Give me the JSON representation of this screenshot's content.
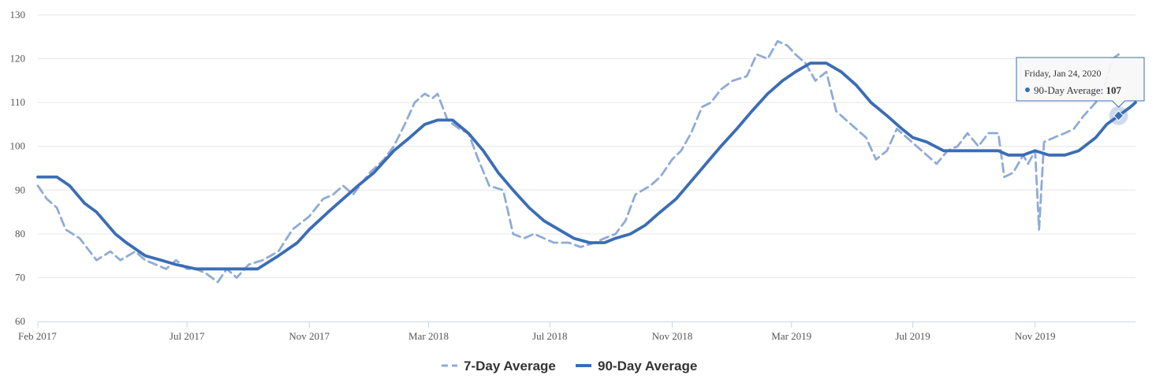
{
  "chart_data": {
    "type": "line",
    "ylim": [
      60,
      130
    ],
    "yticks": [
      60,
      70,
      80,
      90,
      100,
      110,
      120,
      130
    ],
    "xlim": [
      "2017-02-01",
      "2020-02-10"
    ],
    "xticks": [
      {
        "date": "2017-02-01",
        "label": "Feb 2017"
      },
      {
        "date": "2017-07-01",
        "label": "Jul 2017"
      },
      {
        "date": "2017-11-01",
        "label": "Nov 2017"
      },
      {
        "date": "2018-03-01",
        "label": "Mar 2018"
      },
      {
        "date": "2018-07-01",
        "label": "Jul 2018"
      },
      {
        "date": "2018-11-01",
        "label": "Nov 2018"
      },
      {
        "date": "2019-03-01",
        "label": "Mar 2019"
      },
      {
        "date": "2019-07-01",
        "label": "Jul 2019"
      },
      {
        "date": "2019-11-01",
        "label": "Nov 2019"
      }
    ],
    "grid": true,
    "legend_position": "bottom-center",
    "series": [
      {
        "name": "7-Day Average",
        "style": "dashed",
        "color": "#8fabd6",
        "points": [
          [
            "2017-02-01",
            91
          ],
          [
            "2017-02-10",
            88
          ],
          [
            "2017-02-20",
            86
          ],
          [
            "2017-03-01",
            81
          ],
          [
            "2017-03-15",
            79
          ],
          [
            "2017-04-01",
            74
          ],
          [
            "2017-04-15",
            76
          ],
          [
            "2017-04-25",
            74
          ],
          [
            "2017-05-10",
            76
          ],
          [
            "2017-05-20",
            74
          ],
          [
            "2017-06-10",
            72
          ],
          [
            "2017-06-20",
            74
          ],
          [
            "2017-07-01",
            72
          ],
          [
            "2017-07-10",
            72
          ],
          [
            "2017-07-20",
            71
          ],
          [
            "2017-08-01",
            69
          ],
          [
            "2017-08-10",
            72
          ],
          [
            "2017-08-20",
            70
          ],
          [
            "2017-09-01",
            73
          ],
          [
            "2017-09-15",
            74
          ],
          [
            "2017-10-01",
            76
          ],
          [
            "2017-10-15",
            81
          ],
          [
            "2017-11-01",
            84
          ],
          [
            "2017-11-15",
            88
          ],
          [
            "2017-11-25",
            89
          ],
          [
            "2017-12-05",
            91
          ],
          [
            "2017-12-15",
            89
          ],
          [
            "2018-01-01",
            94
          ],
          [
            "2018-01-15",
            97
          ],
          [
            "2018-01-25",
            100
          ],
          [
            "2018-02-05",
            105
          ],
          [
            "2018-02-15",
            110
          ],
          [
            "2018-02-25",
            112
          ],
          [
            "2018-03-05",
            111
          ],
          [
            "2018-03-10",
            112
          ],
          [
            "2018-03-20",
            106
          ],
          [
            "2018-04-01",
            104
          ],
          [
            "2018-04-10",
            103
          ],
          [
            "2018-04-20",
            97
          ],
          [
            "2018-05-01",
            91
          ],
          [
            "2018-05-15",
            90
          ],
          [
            "2018-05-25",
            80
          ],
          [
            "2018-06-05",
            79
          ],
          [
            "2018-06-15",
            80
          ],
          [
            "2018-06-25",
            79
          ],
          [
            "2018-07-05",
            78
          ],
          [
            "2018-07-20",
            78
          ],
          [
            "2018-08-01",
            77
          ],
          [
            "2018-08-15",
            78
          ],
          [
            "2018-08-25",
            79
          ],
          [
            "2018-09-05",
            80
          ],
          [
            "2018-09-15",
            83
          ],
          [
            "2018-09-25",
            89
          ],
          [
            "2018-10-10",
            91
          ],
          [
            "2018-10-20",
            93
          ],
          [
            "2018-11-01",
            97
          ],
          [
            "2018-11-10",
            99
          ],
          [
            "2018-11-20",
            103
          ],
          [
            "2018-12-01",
            109
          ],
          [
            "2018-12-10",
            110
          ],
          [
            "2018-12-20",
            113
          ],
          [
            "2019-01-01",
            115
          ],
          [
            "2019-01-15",
            116
          ],
          [
            "2019-01-25",
            121
          ],
          [
            "2019-02-05",
            120
          ],
          [
            "2019-02-15",
            124
          ],
          [
            "2019-02-25",
            123
          ],
          [
            "2019-03-05",
            121
          ],
          [
            "2019-03-15",
            119
          ],
          [
            "2019-03-25",
            115
          ],
          [
            "2019-04-05",
            117
          ],
          [
            "2019-04-15",
            108
          ],
          [
            "2019-04-25",
            106
          ],
          [
            "2019-05-05",
            104
          ],
          [
            "2019-05-15",
            102
          ],
          [
            "2019-05-25",
            97
          ],
          [
            "2019-06-05",
            99
          ],
          [
            "2019-06-15",
            104
          ],
          [
            "2019-06-25",
            102
          ],
          [
            "2019-07-05",
            100
          ],
          [
            "2019-07-15",
            98
          ],
          [
            "2019-07-25",
            96
          ],
          [
            "2019-08-05",
            99
          ],
          [
            "2019-08-15",
            100
          ],
          [
            "2019-08-25",
            103
          ],
          [
            "2019-09-05",
            100
          ],
          [
            "2019-09-15",
            103
          ],
          [
            "2019-09-25",
            103
          ],
          [
            "2019-10-01",
            93
          ],
          [
            "2019-10-10",
            94
          ],
          [
            "2019-10-20",
            98
          ],
          [
            "2019-10-25",
            96
          ],
          [
            "2019-11-01",
            99
          ],
          [
            "2019-11-05",
            81
          ],
          [
            "2019-11-10",
            101
          ],
          [
            "2019-11-20",
            102
          ],
          [
            "2019-12-01",
            103
          ],
          [
            "2019-12-10",
            104
          ],
          [
            "2019-12-20",
            107
          ],
          [
            "2020-01-01",
            110
          ],
          [
            "2020-01-10",
            114
          ],
          [
            "2020-01-18",
            120
          ],
          [
            "2020-01-24",
            121
          ]
        ]
      },
      {
        "name": "90-Day Average",
        "style": "solid",
        "color": "#3b6db5",
        "points": [
          [
            "2017-02-01",
            93
          ],
          [
            "2017-02-20",
            93
          ],
          [
            "2017-03-05",
            91
          ],
          [
            "2017-03-20",
            87
          ],
          [
            "2017-04-01",
            85
          ],
          [
            "2017-04-20",
            80
          ],
          [
            "2017-05-01",
            78
          ],
          [
            "2017-05-20",
            75
          ],
          [
            "2017-06-05",
            74
          ],
          [
            "2017-06-20",
            73
          ],
          [
            "2017-07-10",
            72
          ],
          [
            "2017-08-01",
            72
          ],
          [
            "2017-08-20",
            72
          ],
          [
            "2017-09-10",
            72
          ],
          [
            "2017-10-01",
            75
          ],
          [
            "2017-10-20",
            78
          ],
          [
            "2017-11-01",
            81
          ],
          [
            "2017-11-20",
            85
          ],
          [
            "2017-12-05",
            88
          ],
          [
            "2017-12-20",
            91
          ],
          [
            "2018-01-05",
            94
          ],
          [
            "2018-01-25",
            99
          ],
          [
            "2018-02-10",
            102
          ],
          [
            "2018-02-25",
            105
          ],
          [
            "2018-03-10",
            106
          ],
          [
            "2018-03-25",
            106
          ],
          [
            "2018-04-10",
            103
          ],
          [
            "2018-04-25",
            99
          ],
          [
            "2018-05-10",
            94
          ],
          [
            "2018-05-25",
            90
          ],
          [
            "2018-06-10",
            86
          ],
          [
            "2018-06-25",
            83
          ],
          [
            "2018-07-10",
            81
          ],
          [
            "2018-07-25",
            79
          ],
          [
            "2018-08-10",
            78
          ],
          [
            "2018-08-25",
            78
          ],
          [
            "2018-09-05",
            79
          ],
          [
            "2018-09-20",
            80
          ],
          [
            "2018-10-05",
            82
          ],
          [
            "2018-10-20",
            85
          ],
          [
            "2018-11-05",
            88
          ],
          [
            "2018-11-20",
            92
          ],
          [
            "2018-12-05",
            96
          ],
          [
            "2018-12-20",
            100
          ],
          [
            "2019-01-05",
            104
          ],
          [
            "2019-01-20",
            108
          ],
          [
            "2019-02-05",
            112
          ],
          [
            "2019-02-20",
            115
          ],
          [
            "2019-03-05",
            117
          ],
          [
            "2019-03-20",
            119
          ],
          [
            "2019-04-05",
            119
          ],
          [
            "2019-04-20",
            117
          ],
          [
            "2019-05-05",
            114
          ],
          [
            "2019-05-20",
            110
          ],
          [
            "2019-06-05",
            107
          ],
          [
            "2019-06-20",
            104
          ],
          [
            "2019-07-01",
            102
          ],
          [
            "2019-07-15",
            101
          ],
          [
            "2019-08-01",
            99
          ],
          [
            "2019-08-20",
            99
          ],
          [
            "2019-09-10",
            99
          ],
          [
            "2019-09-25",
            99
          ],
          [
            "2019-10-05",
            98
          ],
          [
            "2019-10-20",
            98
          ],
          [
            "2019-11-01",
            99
          ],
          [
            "2019-11-15",
            98
          ],
          [
            "2019-12-01",
            98
          ],
          [
            "2019-12-15",
            99
          ],
          [
            "2020-01-01",
            102
          ],
          [
            "2020-01-12",
            105
          ],
          [
            "2020-01-24",
            107
          ],
          [
            "2020-02-05",
            109
          ],
          [
            "2020-02-10",
            110
          ]
        ]
      }
    ],
    "tooltip": {
      "date_label": "Friday, Jan 24, 2020",
      "series_label": "90-Day Average:",
      "value": "107",
      "date": "2020-01-24",
      "y": 107
    }
  }
}
